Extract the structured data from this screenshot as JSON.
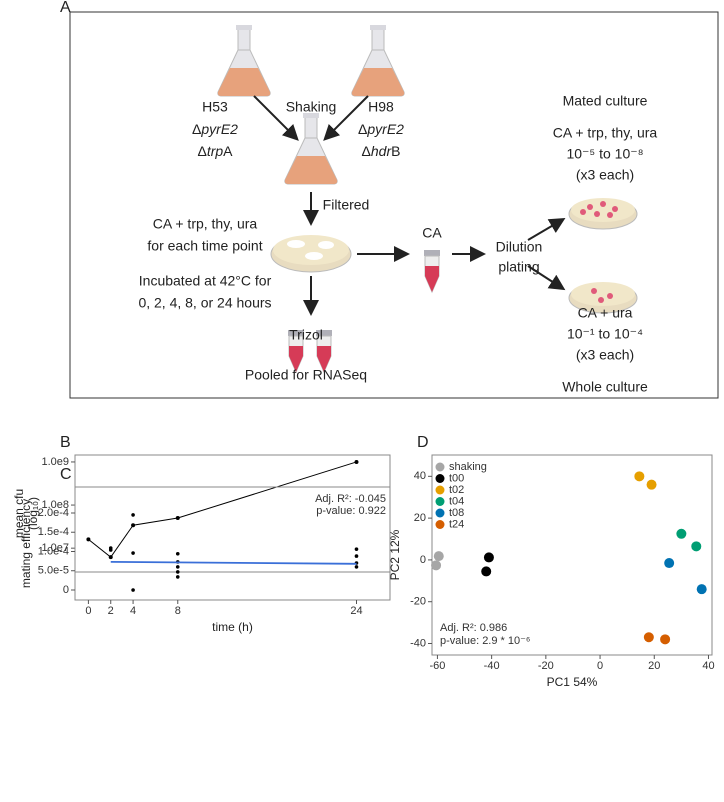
{
  "diagram": {
    "panel_label": "A",
    "strains": [
      {
        "name": "H53",
        "lines": [
          {
            "prefix": "Δ",
            "italic": "pyrE2"
          },
          {
            "prefix": "Δ",
            "italic": "trp",
            "suffix": "A"
          }
        ]
      },
      {
        "name": "H98",
        "lines": [
          {
            "prefix": "Δ",
            "italic": "pyrE2"
          },
          {
            "prefix": "Δ",
            "italic": "hdr",
            "suffix": "B"
          }
        ]
      }
    ],
    "shaking": "Shaking",
    "filtered": "Filtered",
    "medium": [
      "CA + trp, thy, ura",
      "for each time point"
    ],
    "incubation": [
      "Incubated at 42°C for",
      "0, 2, 4, 8, or 24 hours"
    ],
    "ca": "CA",
    "dilution": [
      "Dilution",
      "plating"
    ],
    "mated": {
      "title": "Mated culture",
      "lines": [
        "CA +  trp, thy, ura",
        "10⁻⁵ to 10⁻⁸",
        "(x3 each)"
      ]
    },
    "whole": {
      "title": "Whole culture",
      "lines": [
        "CA + ura",
        "10⁻¹ to 10⁻⁴",
        "(x3 each)"
      ]
    },
    "trizol": "Trizol",
    "pooled": "Pooled for RNASeq"
  },
  "chart_data": [
    {
      "type": "line",
      "panel_label": "B",
      "ylabel": [
        "mean cfu",
        "(log₁₀)"
      ],
      "log_y": true,
      "x": [
        0,
        2,
        4,
        8,
        24
      ],
      "values": [
        16000000,
        6200000,
        34000000,
        50000000,
        1000000000
      ],
      "color": "#000000",
      "xlim": [
        -1.2,
        27
      ],
      "ylim": [
        2800000,
        1450000000
      ],
      "yticks": [
        {
          "value": 10000000,
          "label": "1.0e7"
        },
        {
          "value": 100000000,
          "label": "1.0e8"
        },
        {
          "value": 1000000000,
          "label": "1.0e9"
        }
      ]
    },
    {
      "type": "scatter",
      "panel_label": "C",
      "xlabel": "time (h)",
      "ylabel": "mating efficiency",
      "points": {
        "x": [
          2,
          2,
          4,
          4,
          4,
          8,
          8,
          8,
          8,
          8,
          24,
          24,
          24,
          24
        ],
        "values": [
          0.000109,
          0.000104,
          0.000195,
          9.6e-05,
          0,
          9.4e-05,
          7.3e-05,
          6e-05,
          4.7e-05,
          3.4e-05,
          0.000106,
          8.8e-05,
          7e-05,
          6e-05
        ],
        "color": "#000000"
      },
      "fit": {
        "x": [
          2,
          24
        ],
        "values": [
          7.3e-05,
          6.8e-05
        ],
        "color": "#3a6fd8"
      },
      "annotations": [
        "Adj. R²: -0.045",
        "p-value: 0.922"
      ],
      "annotation_corner": "top-right",
      "xlim": [
        -1.2,
        27
      ],
      "ylim": [
        -2.6e-05,
        0.0002675
      ],
      "xticks": [
        0,
        2,
        4,
        8,
        24
      ],
      "yticks": [
        0,
        {
          "value": 5e-05,
          "label": "5.0e-5"
        },
        {
          "value": 0.0001,
          "label": "1.0e-4"
        },
        {
          "value": 0.00015,
          "label": "1.5e-4"
        },
        {
          "value": 0.0002,
          "label": "2.0e-4"
        }
      ]
    },
    {
      "type": "scatter",
      "panel_label": "D",
      "xlabel": "PC1 54%",
      "ylabel": "PC2 12%",
      "legend": "top-left",
      "series": [
        {
          "name": "shaking",
          "color": "#a6a6a6",
          "x": [
            -59.5,
            -60.5
          ],
          "values": [
            1.8,
            -2.6
          ]
        },
        {
          "name": "t00",
          "color": "#000000",
          "x": [
            -41,
            -42
          ],
          "values": [
            1.2,
            -5.5
          ]
        },
        {
          "name": "t02",
          "color": "#e69f00",
          "x": [
            14.5,
            19
          ],
          "values": [
            40,
            36
          ]
        },
        {
          "name": "t04",
          "color": "#009e73",
          "x": [
            30,
            35.5
          ],
          "values": [
            12.5,
            6.5
          ]
        },
        {
          "name": "t08",
          "color": "#0072b2",
          "x": [
            25.5,
            37.5
          ],
          "values": [
            -1.5,
            -14
          ]
        },
        {
          "name": "t24",
          "color": "#d55e00",
          "x": [
            18,
            24
          ],
          "values": [
            -37,
            -38
          ]
        }
      ],
      "annotations": [
        "Adj. R²: 0.986",
        "p-value: 2.9 * 10⁻⁶"
      ],
      "annotation_corner": "bottom-left",
      "xlim": [
        -62,
        41.3
      ],
      "ylim": [
        -45.5,
        50.2
      ],
      "xticks": [
        -60,
        -40,
        -20,
        0,
        20,
        40
      ],
      "yticks": [
        -40,
        -20,
        0,
        20,
        40
      ]
    }
  ]
}
